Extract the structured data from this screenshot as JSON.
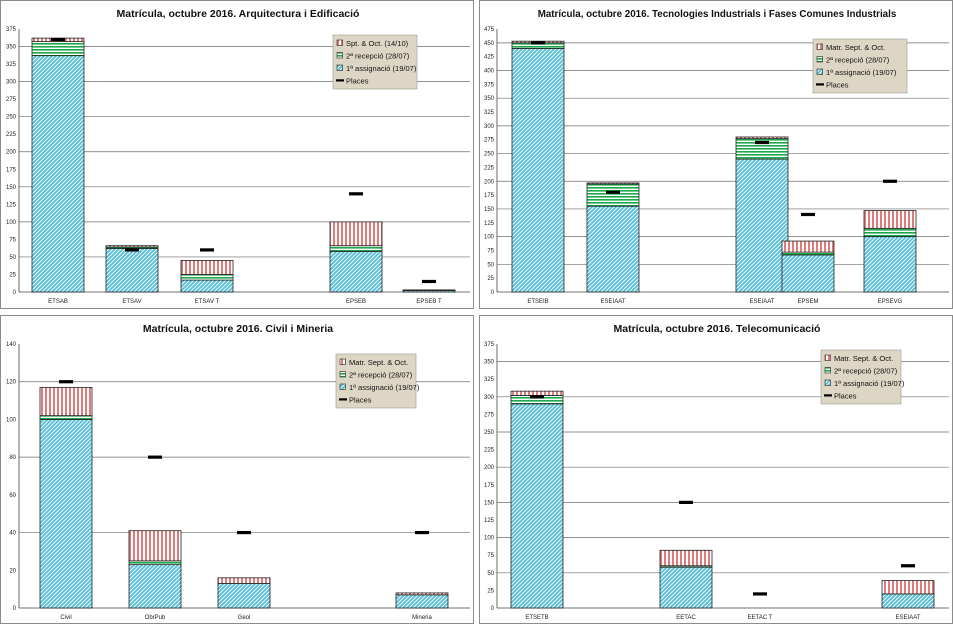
{
  "colors": {
    "assign_fill": "#5bc0d8",
    "assign_hatch": "#ffffff",
    "second_fill": "#1aa84a",
    "sept_fill": "#e07b7b",
    "places": "#000000",
    "grid": "#6e6e6e",
    "legend_bg": "#ded6c4"
  },
  "chart_data": [
    {
      "type": "bar",
      "stacked": true,
      "title": "Matrícula, octubre 2016. Arquitectura i Edificació",
      "ylim": [
        0,
        375
      ],
      "ytick_step": 25,
      "yticks": [
        "0",
        "25",
        "50",
        "75",
        "100",
        "125",
        "150",
        "175",
        "200",
        "225",
        "250",
        "275",
        "300",
        "325",
        "350",
        "375"
      ],
      "categories": [
        "ETSAB",
        "ETSAV",
        "ETSAV T",
        "",
        "EPSEB",
        "EPSEB T"
      ],
      "legend_position": "top-right",
      "series": [
        {
          "name": "1ª assignació (19/07)",
          "key": "assign",
          "values": [
            337,
            62,
            17,
            null,
            58,
            2
          ]
        },
        {
          "name": "2ª recepció (28/07)",
          "key": "second",
          "values": [
            20,
            2,
            8,
            null,
            8,
            0
          ]
        },
        {
          "name": "Spt. & Oct. (14/10)",
          "key": "sept",
          "values": [
            5,
            2,
            20,
            null,
            34,
            1
          ]
        }
      ],
      "places": {
        "name": "Places",
        "values": [
          360,
          60,
          60,
          null,
          140,
          15
        ]
      }
    },
    {
      "type": "bar",
      "stacked": true,
      "title": "Matrícula, octubre 2016. Tecnologies Industrials i Fases Comunes Industrials",
      "ylim": [
        0,
        475
      ],
      "ytick_step": 25,
      "yticks": [
        "0",
        "25",
        "50",
        "75",
        "100",
        "125",
        "150",
        "175",
        "200",
        "225",
        "250",
        "275",
        "300",
        "325",
        "350",
        "375",
        "400",
        "425",
        "450",
        "475"
      ],
      "categories": [
        "ETSEIB",
        "ESEIAAT",
        "",
        "ESEIAAT",
        "EPSEM",
        "EPSEVG"
      ],
      "legend_position": "top-right",
      "series": [
        {
          "name": "1ª assignació (19/07)",
          "key": "assign",
          "values": [
            440,
            155,
            null,
            240,
            67,
            100
          ]
        },
        {
          "name": "2ª recepció (28/07)",
          "key": "second",
          "values": [
            10,
            40,
            null,
            37,
            5,
            15
          ]
        },
        {
          "name": "Matr. Sept. & Oct.",
          "key": "sept",
          "values": [
            3,
            2,
            null,
            3,
            20,
            32
          ]
        }
      ],
      "places": {
        "name": "Places",
        "values": [
          450,
          180,
          null,
          270,
          140,
          200
        ]
      }
    },
    {
      "type": "bar",
      "stacked": true,
      "title": "Matrícula, octubre 2016. Civil i Mineria",
      "ylim": [
        0,
        140
      ],
      "ytick_step": 20,
      "yticks": [
        "0",
        "20",
        "40",
        "60",
        "80",
        "100",
        "120",
        "140"
      ],
      "categories": [
        "Civil",
        "ObrPub",
        "Geol",
        "",
        "Mineria"
      ],
      "legend_position": "top-right",
      "series": [
        {
          "name": "1ª assignació (19/07)",
          "key": "assign",
          "values": [
            100,
            23,
            13,
            null,
            7
          ]
        },
        {
          "name": "2ª recepció (28/07)",
          "key": "second",
          "values": [
            2,
            2,
            0,
            null,
            0
          ]
        },
        {
          "name": "Matr. Sept. & Oct.",
          "key": "sept",
          "values": [
            15,
            16,
            3,
            null,
            1
          ]
        }
      ],
      "places": {
        "name": "Places",
        "values": [
          120,
          80,
          40,
          null,
          40
        ]
      }
    },
    {
      "type": "bar",
      "stacked": true,
      "title": "Matrícula, octubre 2016. Telecomunicació",
      "ylim": [
        0,
        375
      ],
      "ytick_step": 25,
      "yticks": [
        "0",
        "25",
        "50",
        "75",
        "100",
        "125",
        "150",
        "175",
        "200",
        "225",
        "250",
        "275",
        "300",
        "325",
        "350",
        "375"
      ],
      "categories": [
        "ETSETB",
        "",
        "EETAC",
        "EETAC T",
        "ESEIAAT"
      ],
      "legend_position": "top-right",
      "series": [
        {
          "name": "1ª assignació (19/07)",
          "key": "assign",
          "values": [
            290,
            null,
            58,
            0,
            20
          ]
        },
        {
          "name": "2ª recepció (28/07)",
          "key": "second",
          "values": [
            12,
            null,
            2,
            0,
            0
          ]
        },
        {
          "name": "Matr. Sept. & Oct.",
          "key": "sept",
          "values": [
            6,
            null,
            22,
            0,
            19
          ]
        }
      ],
      "places": {
        "name": "Places",
        "values": [
          300,
          null,
          150,
          20,
          60
        ]
      }
    }
  ]
}
